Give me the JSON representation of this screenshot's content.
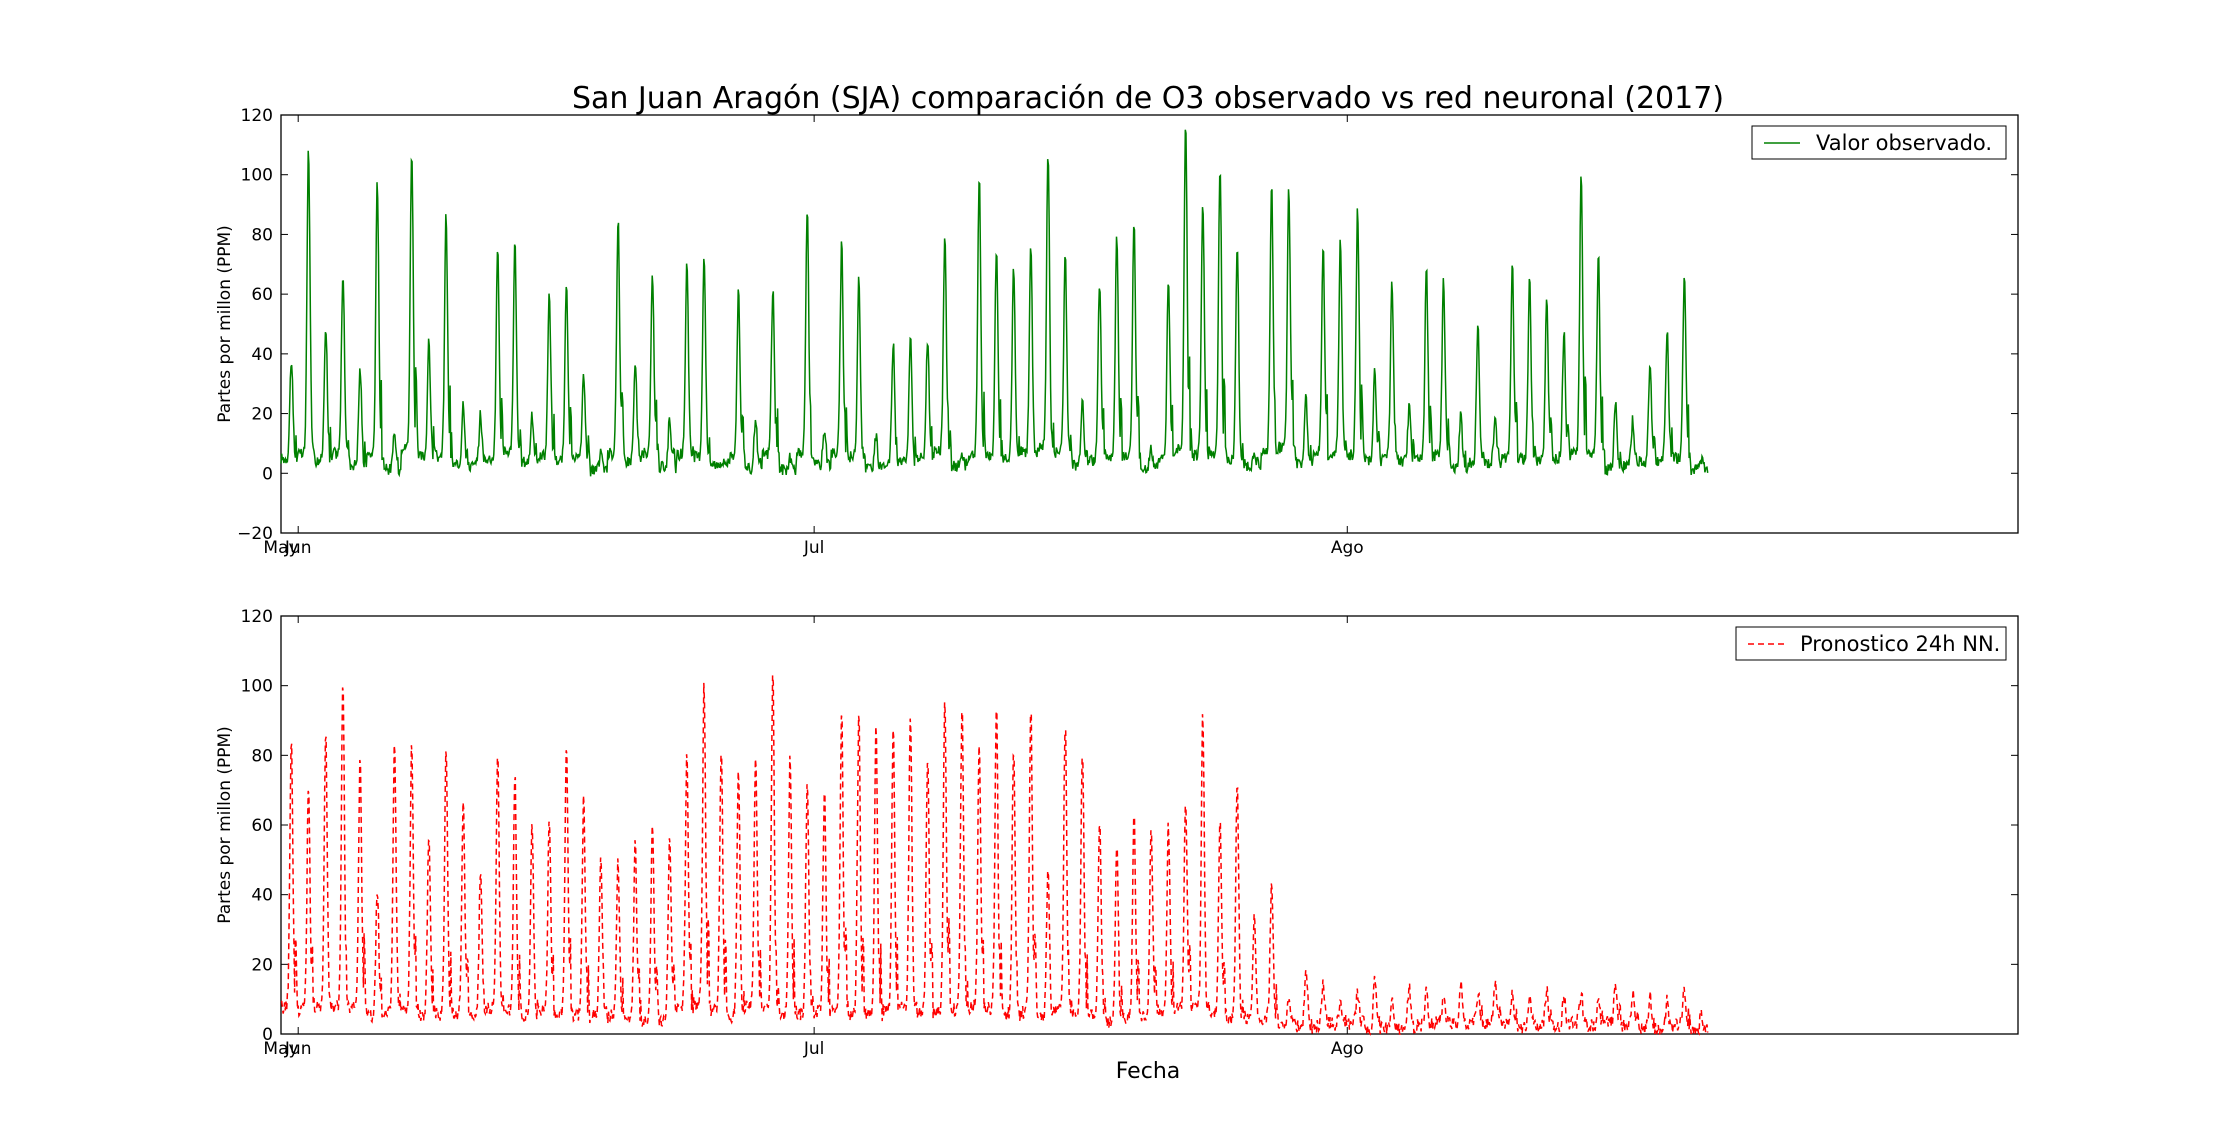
{
  "figure": {
    "title": "San Juan Aragón (SJA) comparación de O3 observado vs red neuronal (2017)",
    "xlabel": "Fecha"
  },
  "chart_data": [
    {
      "type": "line",
      "ylabel": "Partes por millon (PPM)",
      "ylim": [
        -20,
        120
      ],
      "yticks": [
        "−20",
        "0",
        "20",
        "40",
        "60",
        "80",
        "100",
        "120"
      ],
      "xlim": [
        "2017-05-31",
        "2017-09-09"
      ],
      "xticks": [
        {
          "label": "May",
          "date": "2017-05-31"
        },
        {
          "label": "Jun",
          "date": "2017-06-01"
        },
        {
          "label": "Jul",
          "date": "2017-07-01"
        },
        {
          "label": "Ago",
          "date": "2017-08-01"
        }
      ],
      "legend": "top-right",
      "series": [
        {
          "name": "Valor observado.",
          "color": "#008000",
          "style": "solid",
          "x_start": "2017-05-31",
          "x_end": "2017-09-01",
          "daily_peaks": [
            38,
            109,
            50,
            67,
            35,
            98,
            13,
            108,
            44,
            87,
            24,
            20,
            76,
            78,
            19,
            61,
            65,
            33,
            7,
            86,
            37,
            67,
            19,
            71,
            74,
            4,
            62,
            19,
            62,
            5,
            90,
            15,
            77,
            65,
            12,
            44,
            46,
            45,
            79,
            5,
            100,
            75,
            68,
            75,
            108,
            73,
            25,
            65,
            80,
            84,
            8,
            65,
            118,
            91,
            103,
            76,
            5,
            97,
            95,
            25,
            76,
            79,
            89,
            34,
            64,
            22,
            70,
            65,
            20,
            50,
            20,
            70,
            66,
            60,
            48,
            101,
            73,
            23,
            18,
            37,
            48,
            68,
            5
          ]
        },
        {
          "name": "Pronostico 24h NN.",
          "color": "#ff0000",
          "style": "dashed",
          "x_start": "2017-05-31",
          "x_end": "2017-09-01",
          "daily_peaks": [
            85,
            71,
            87,
            103,
            79,
            42,
            85,
            83,
            58,
            83,
            69,
            46,
            80,
            75,
            61,
            62,
            84,
            68,
            52,
            50,
            55,
            60,
            58,
            80,
            101,
            83,
            77,
            81,
            104,
            80,
            73,
            70,
            93,
            92,
            89,
            87,
            92,
            81,
            97,
            95,
            83,
            94,
            82,
            94,
            47,
            89,
            82,
            62,
            55,
            63,
            60,
            60,
            68,
            92,
            61,
            73,
            33,
            43,
            10,
            20,
            15,
            10,
            12,
            15,
            10,
            14,
            12,
            10,
            15,
            12,
            14,
            12,
            10,
            13,
            11,
            12,
            10,
            14,
            12,
            11,
            10,
            13,
            6
          ]
        }
      ]
    },
    {
      "type": "line",
      "ylabel": "Partes por millon (PPM)",
      "ylim": [
        0,
        120
      ],
      "yticks": [
        "0",
        "20",
        "40",
        "60",
        "80",
        "100",
        "120"
      ],
      "xlim": [
        "2017-05-31",
        "2017-09-09"
      ],
      "xticks": [
        {
          "label": "May",
          "date": "2017-05-31"
        },
        {
          "label": "Jun",
          "date": "2017-06-01"
        },
        {
          "label": "Jul",
          "date": "2017-07-01"
        },
        {
          "label": "Ago",
          "date": "2017-08-01"
        }
      ],
      "legend": "top-right"
    }
  ]
}
